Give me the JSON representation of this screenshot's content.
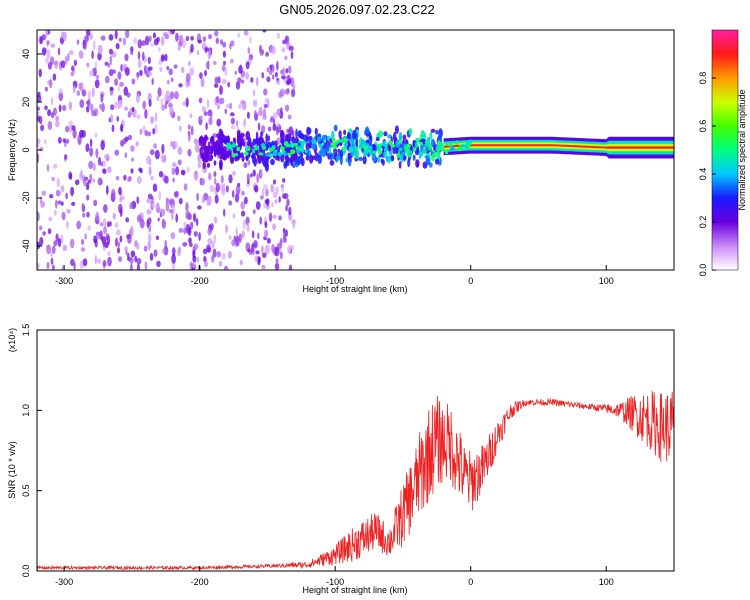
{
  "title": "GN05.2026.097.02.23.C22",
  "colors": {
    "snr_line": "#ee2222",
    "spectrogram_background_dots": "#6a1fd8",
    "frame": "#000000"
  },
  "chart_data": [
    {
      "type": "heatmap",
      "xlabel": "Height of straight line (km)",
      "ylabel": "Frequency (Hz)",
      "xlim": [
        -320,
        150
      ],
      "ylim": [
        -50,
        50
      ],
      "xticks": [
        -300,
        -200,
        -100,
        0,
        100
      ],
      "yticks": [
        -40,
        -20,
        0,
        20,
        40
      ],
      "colorbar": {
        "label": "Normalized spectral amplitude",
        "range": [
          0.0,
          1.0
        ],
        "ticks": [
          0.0,
          0.2,
          0.4,
          0.6,
          0.8
        ],
        "tick_labels": [
          "0.0",
          "0.2",
          "0.4",
          "0.6",
          "0.8"
        ],
        "colormap": "rainbow (white → purple → blue → cyan → green → yellow → red → magenta)"
      },
      "regions": [
        {
          "x_range": [
            -320,
            -130
          ],
          "freq_range": [
            -50,
            50
          ],
          "amplitude": 0.1,
          "description": "broadband noise"
        },
        {
          "x_range": [
            -200,
            -20
          ],
          "freq_range": [
            -8,
            8
          ],
          "amplitude": 0.35
        },
        {
          "x_range": [
            -20,
            150
          ],
          "freq_range": [
            -2,
            4
          ],
          "amplitude": 0.8
        }
      ],
      "ridge": {
        "x": [
          -190,
          -150,
          -100,
          -60,
          -30,
          0,
          30,
          60,
          100,
          150
        ],
        "freq": [
          0,
          0,
          2,
          1,
          1,
          2,
          2,
          2,
          1,
          1
        ]
      }
    },
    {
      "type": "line",
      "xlabel": "Height of straight line (km)",
      "ylabel": "SNR (10 * v/v)",
      "y_scale_label": "(x10⁴)",
      "xlim": [
        -320,
        150
      ],
      "ylim": [
        0.0,
        1.5
      ],
      "xticks": [
        -300,
        -200,
        -100,
        0,
        100
      ],
      "yticks": [
        0.0,
        0.5,
        1.0,
        1.5
      ],
      "ytick_labels": [
        "0.0",
        "0.5",
        "1.0",
        "1.5"
      ],
      "series": [
        {
          "x": [
            -320,
            -250,
            -200,
            -150,
            -120,
            -100,
            -90,
            -80,
            -70,
            -60,
            -50,
            -40,
            -35,
            -30,
            -25,
            -20,
            -15,
            -10,
            -5,
            0,
            10,
            20,
            30,
            40,
            50,
            60,
            70,
            80,
            90,
            100,
            110,
            120,
            130,
            140,
            150
          ],
          "y": [
            0.02,
            0.02,
            0.02,
            0.03,
            0.04,
            0.1,
            0.15,
            0.2,
            0.25,
            0.18,
            0.35,
            0.55,
            0.65,
            0.75,
            0.8,
            0.8,
            0.8,
            0.7,
            0.6,
            0.55,
            0.65,
            0.85,
            1.0,
            1.05,
            1.05,
            1.05,
            1.04,
            1.03,
            1.02,
            1.01,
            1.0,
            0.98,
            0.95,
            0.9,
            0.9
          ],
          "noise_amplitude": [
            0.01,
            0.01,
            0.01,
            0.01,
            0.02,
            0.06,
            0.1,
            0.12,
            0.12,
            0.1,
            0.2,
            0.25,
            0.3,
            0.3,
            0.3,
            0.25,
            0.25,
            0.25,
            0.2,
            0.2,
            0.15,
            0.1,
            0.05,
            0.02,
            0.02,
            0.02,
            0.02,
            0.02,
            0.02,
            0.03,
            0.05,
            0.12,
            0.18,
            0.22,
            0.25
          ]
        }
      ]
    }
  ]
}
